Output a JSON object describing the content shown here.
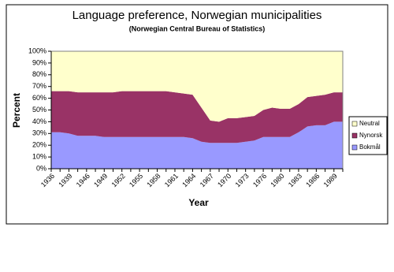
{
  "chart_data": {
    "type": "stacked-area",
    "title": "Language preference, Norwegian municipalities",
    "subtitle": "(Norwegian Central Bureau of Statistics)",
    "x_label": "Year",
    "y_label": "Percent",
    "categories": [
      "1936",
      null,
      "1939",
      null,
      "1946",
      null,
      "1949",
      null,
      "1952",
      null,
      "1955",
      null,
      "1958",
      null,
      "1961",
      null,
      "1964",
      null,
      "1967",
      null,
      "1970",
      null,
      "1973",
      null,
      "1976",
      null,
      "1980",
      null,
      "1983",
      null,
      "1986",
      null,
      "1989",
      null
    ],
    "series": [
      {
        "name": "Neutral",
        "color": "#ffffcc",
        "values": [
          34,
          34,
          34,
          35,
          35,
          35,
          35,
          35,
          34,
          34,
          34,
          34,
          34,
          34,
          35,
          36,
          37,
          48,
          59,
          60,
          57,
          57,
          56,
          55,
          50,
          48,
          49,
          49,
          45,
          39,
          38,
          37,
          35,
          35
        ]
      },
      {
        "name": "Nynorsk",
        "color": "#993366",
        "values": [
          35,
          35,
          36,
          37,
          37,
          37,
          38,
          38,
          39,
          39,
          39,
          39,
          39,
          39,
          38,
          37,
          37,
          29,
          19,
          18,
          21,
          21,
          21,
          21,
          23,
          25,
          24,
          24,
          24,
          25,
          25,
          26,
          25,
          25
        ]
      },
      {
        "name": "Bokmål",
        "color": "#9999ff",
        "values": [
          31,
          31,
          30,
          28,
          28,
          28,
          27,
          27,
          27,
          27,
          27,
          27,
          27,
          27,
          27,
          27,
          26,
          23,
          22,
          22,
          22,
          22,
          23,
          24,
          27,
          27,
          27,
          27,
          31,
          36,
          37,
          37,
          40,
          40
        ]
      }
    ],
    "ylim": [
      0,
      100
    ],
    "yticks": [
      {
        "value": 0,
        "label": "0%"
      },
      {
        "value": 10,
        "label": "10%"
      },
      {
        "value": 20,
        "label": "20%"
      },
      {
        "value": 30,
        "label": "30%"
      },
      {
        "value": 40,
        "label": "40%"
      },
      {
        "value": 50,
        "label": "50%"
      },
      {
        "value": 60,
        "label": "60%"
      },
      {
        "value": 70,
        "label": "70%"
      },
      {
        "value": 80,
        "label": "80%"
      },
      {
        "value": 90,
        "label": "90%"
      },
      {
        "value": 100,
        "label": "100%"
      }
    ],
    "legend": "right"
  }
}
